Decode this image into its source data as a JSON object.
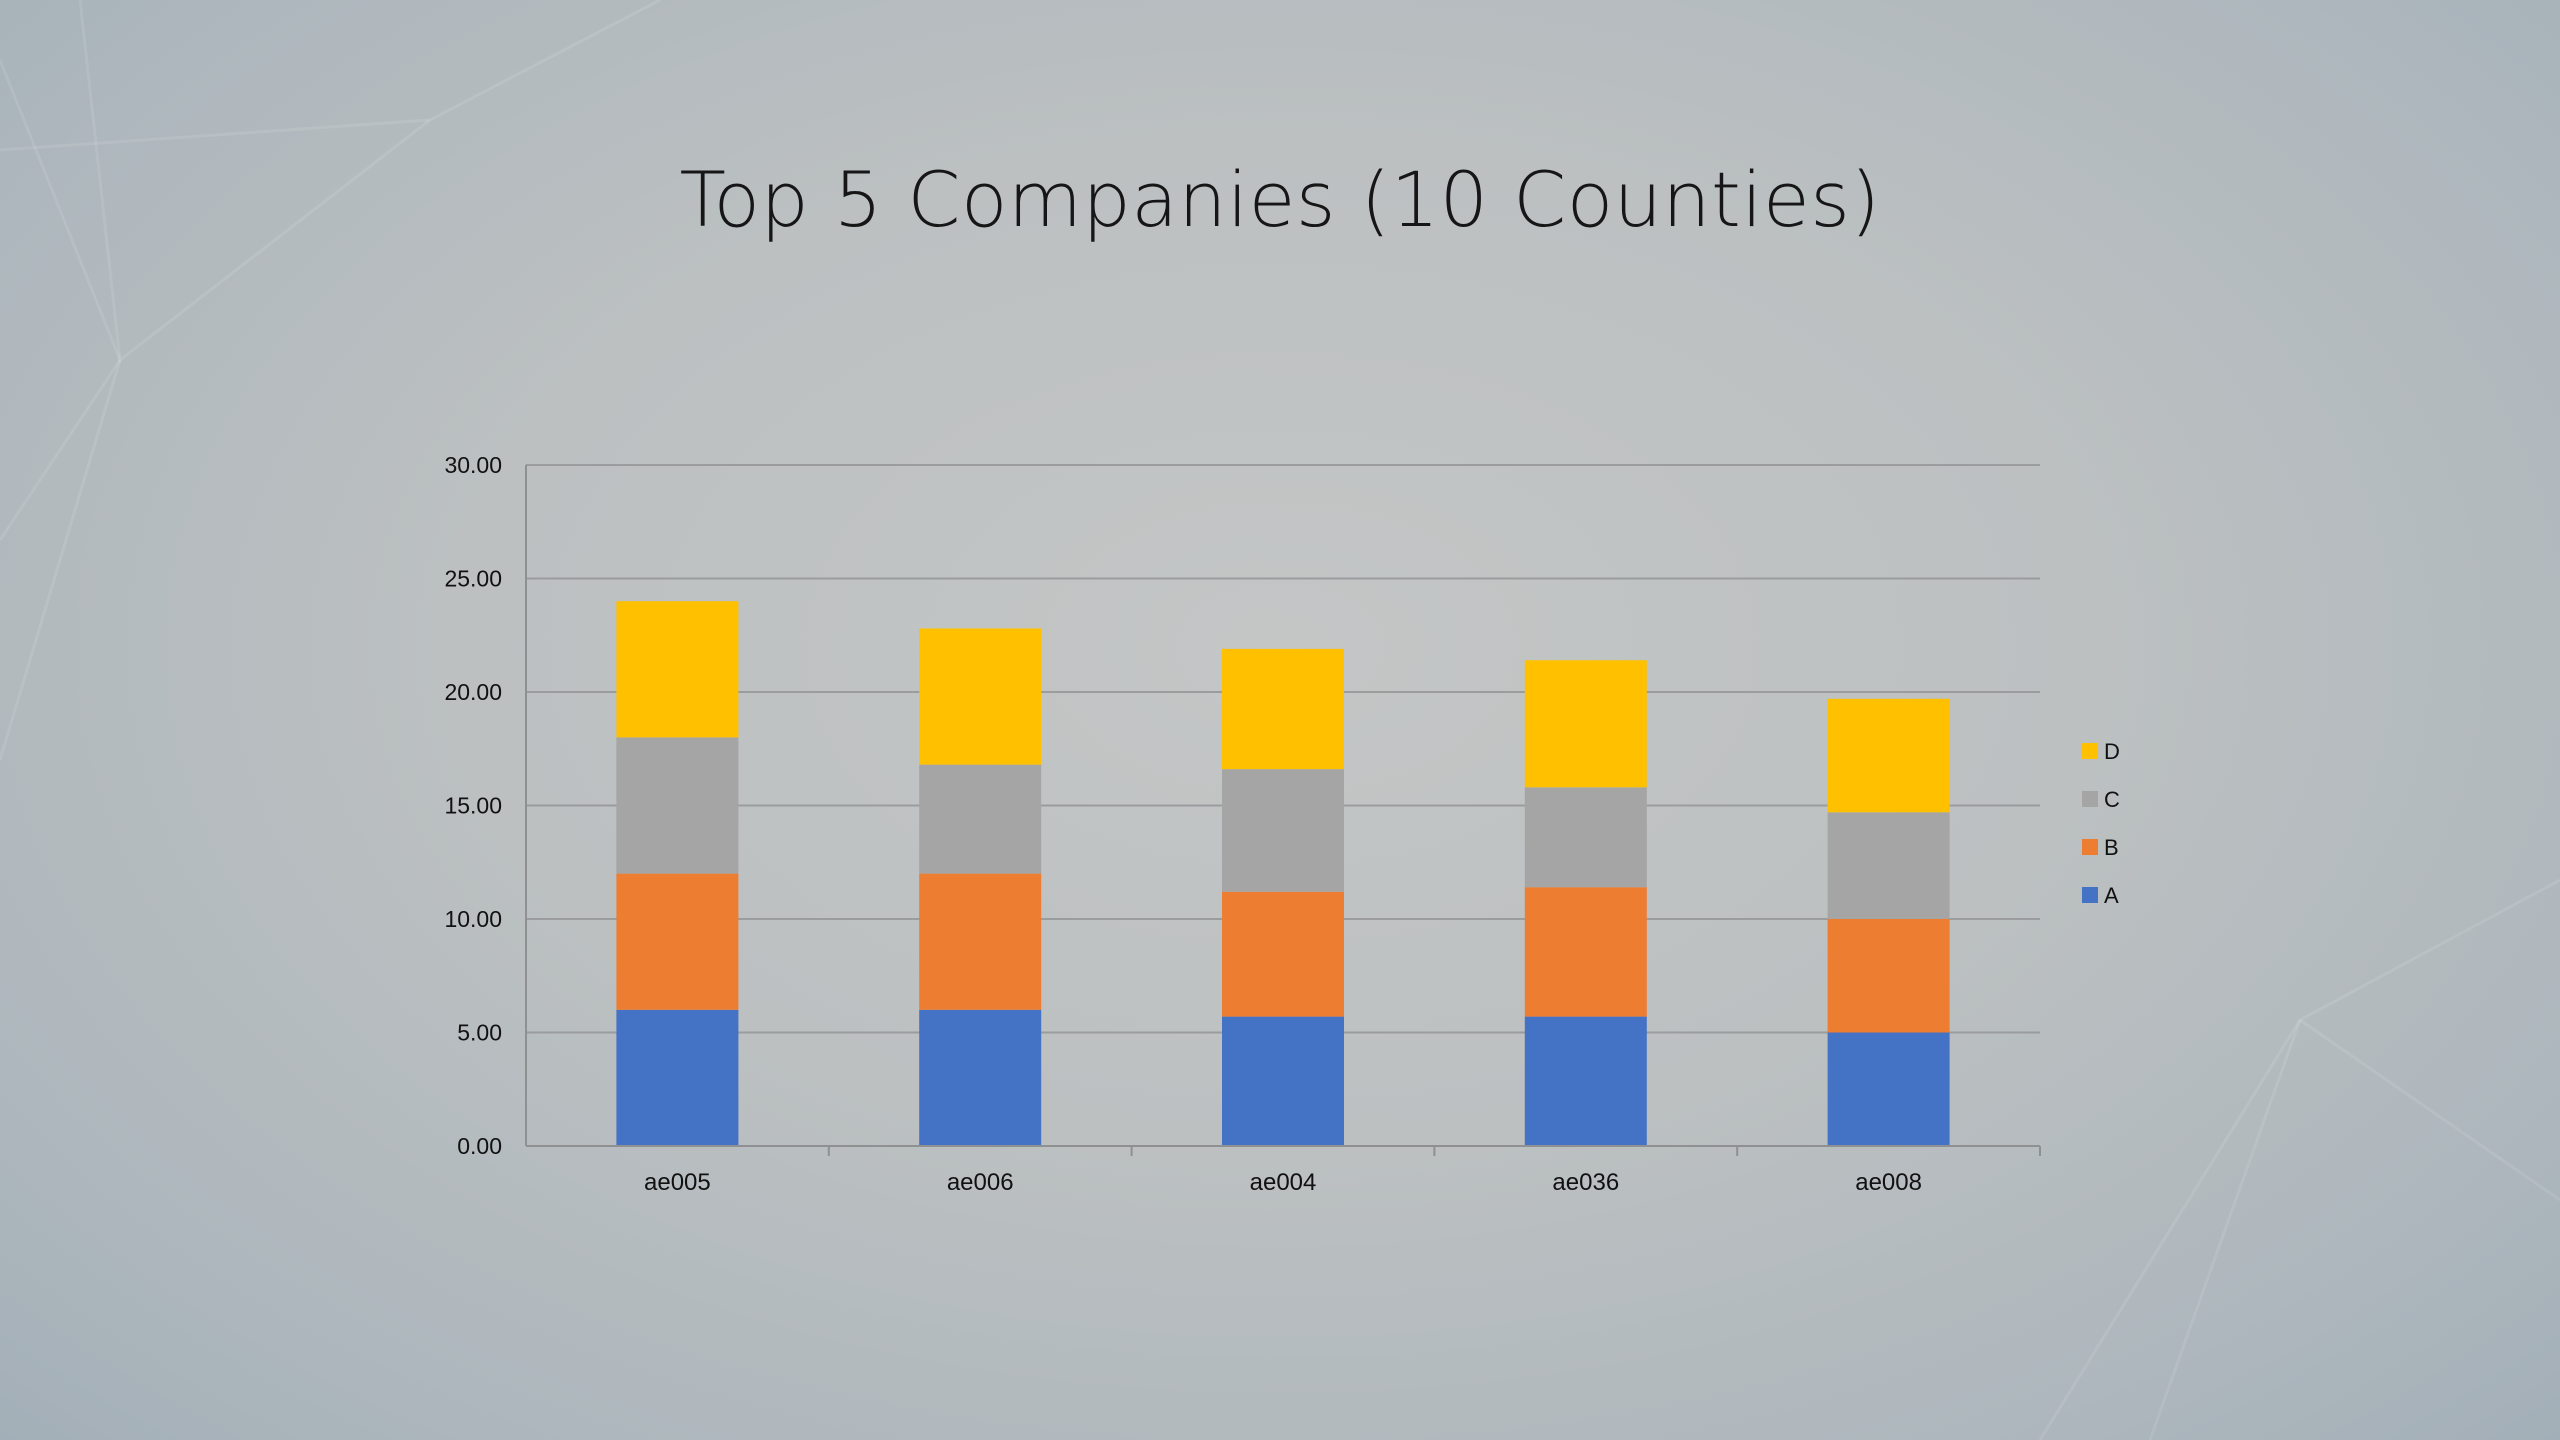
{
  "title": "Top 5 Companies (10 Counties)",
  "chart_data": {
    "type": "bar",
    "stacked": true,
    "title": "",
    "xlabel": "",
    "ylabel": "",
    "ylim": [
      0,
      30
    ],
    "ytick_step": 5,
    "ytick_format": "0.00",
    "grid": true,
    "legend": "right",
    "categories": [
      "ae005",
      "ae006",
      "ae004",
      "ae036",
      "ae008"
    ],
    "series": [
      {
        "name": "A",
        "color": "#4472c4",
        "values": [
          6.0,
          6.0,
          5.7,
          5.7,
          5.0
        ]
      },
      {
        "name": "B",
        "color": "#ed7d31",
        "values": [
          6.0,
          6.0,
          5.5,
          5.7,
          5.0
        ]
      },
      {
        "name": "C",
        "color": "#a5a5a5",
        "values": [
          6.0,
          4.8,
          5.4,
          4.4,
          4.7
        ]
      },
      {
        "name": "D",
        "color": "#ffc000",
        "values": [
          6.0,
          6.0,
          5.3,
          5.6,
          5.0
        ]
      }
    ]
  }
}
